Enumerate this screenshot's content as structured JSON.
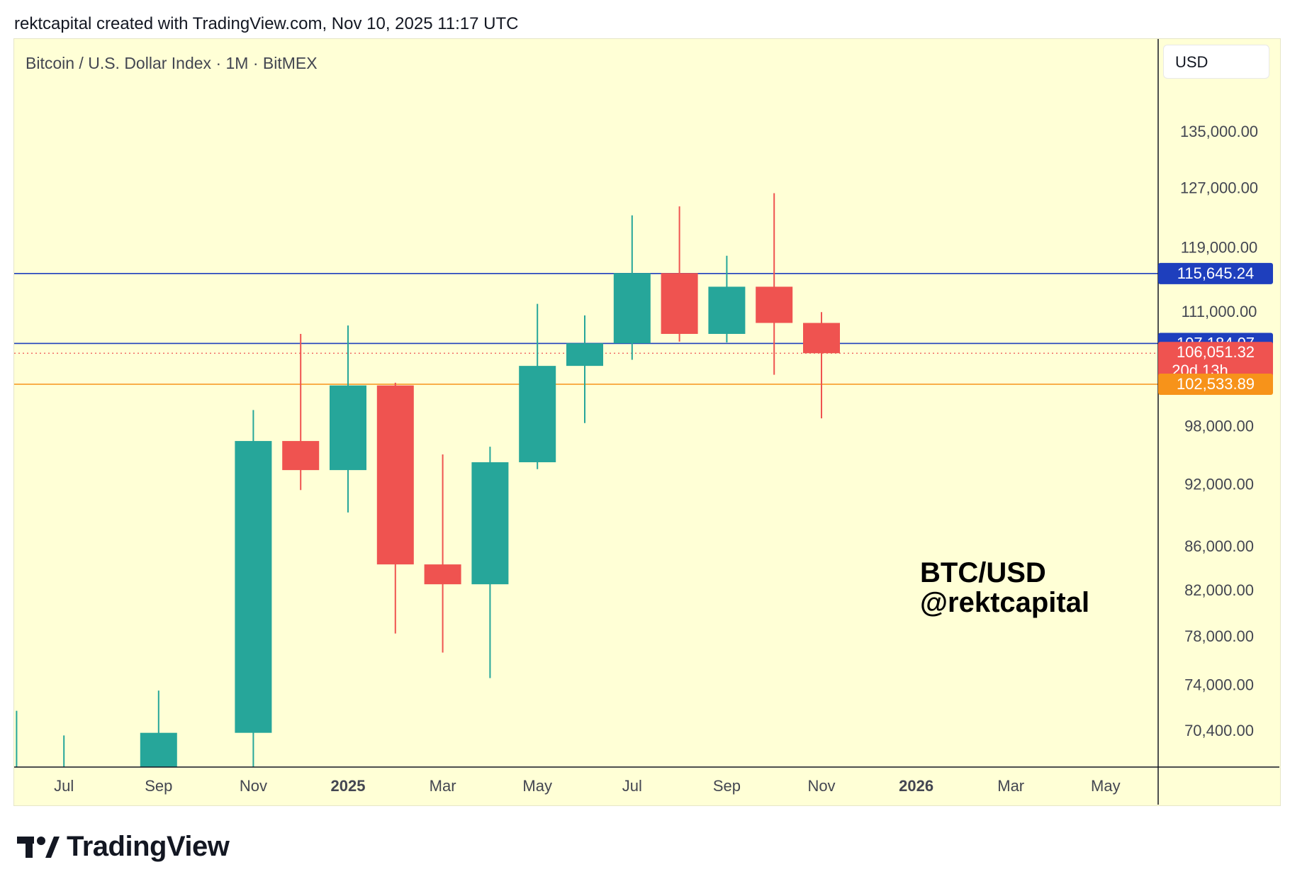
{
  "header": {
    "credit": "rektcapital created with TradingView.com, Nov 10, 2025 11:17 UTC"
  },
  "chart_header": {
    "symbol_line": "Bitcoin / U.S. Dollar Index · 1M · BitMEX",
    "currency": "USD"
  },
  "watermark": {
    "line1": "BTC/USD",
    "line2": "@rektcapital"
  },
  "footer": {
    "brand": "TradingView"
  },
  "colors": {
    "background": "#ffffd6",
    "up": "#26a69a",
    "down": "#ef5350",
    "level_blue": "#1e3fbd",
    "level_orange": "#f7931a",
    "current_red": "#ef5350"
  },
  "chart_data": {
    "type": "candlestick",
    "title": "Bitcoin / U.S. Dollar Index · 1M · BitMEX",
    "interval": "1M",
    "y_scale": "log",
    "ylim": [
      67500,
      140000
    ],
    "y_ticks": [
      "135,000.00",
      "127,000.00",
      "119,000.00",
      "111,000.00",
      "98,000.00",
      "92,000.00",
      "86,000.00",
      "82,000.00",
      "78,000.00",
      "74,000.00",
      "70,400.00"
    ],
    "y_tick_values": [
      135000,
      127000,
      119000,
      111000,
      98000,
      92000,
      86000,
      82000,
      78000,
      74000,
      70400
    ],
    "x_ticks": [
      {
        "label": "Jul",
        "month": "2024-07",
        "bold": false
      },
      {
        "label": "Sep",
        "month": "2024-09",
        "bold": false
      },
      {
        "label": "Nov",
        "month": "2024-11",
        "bold": false
      },
      {
        "label": "2025",
        "month": "2025-01",
        "bold": true
      },
      {
        "label": "Mar",
        "month": "2025-03",
        "bold": false
      },
      {
        "label": "May",
        "month": "2025-05",
        "bold": false
      },
      {
        "label": "Jul",
        "month": "2025-07",
        "bold": false
      },
      {
        "label": "Sep",
        "month": "2025-09",
        "bold": false
      },
      {
        "label": "Nov",
        "month": "2025-11",
        "bold": false
      },
      {
        "label": "2026",
        "month": "2026-01",
        "bold": true
      },
      {
        "label": "Mar",
        "month": "2026-03",
        "bold": false
      },
      {
        "label": "May",
        "month": "2026-05",
        "bold": false
      }
    ],
    "candles": [
      {
        "month": "2024-06",
        "open": 67000,
        "high": 71900,
        "low": 67000,
        "close": 67000
      },
      {
        "month": "2024-07",
        "open": 67000,
        "high": 70000,
        "low": 67000,
        "close": 67000
      },
      {
        "month": "2024-09",
        "open": 67000,
        "high": 73500,
        "low": 67000,
        "close": 70200
      },
      {
        "month": "2024-11",
        "open": 70200,
        "high": 99700,
        "low": 66800,
        "close": 96400
      },
      {
        "month": "2024-12",
        "open": 96400,
        "high": 108300,
        "low": 91400,
        "close": 93400
      },
      {
        "month": "2025-01",
        "open": 93400,
        "high": 109300,
        "low": 89200,
        "close": 102400
      },
      {
        "month": "2025-02",
        "open": 102400,
        "high": 102700,
        "low": 78200,
        "close": 84300
      },
      {
        "month": "2025-03",
        "open": 84300,
        "high": 95000,
        "low": 76600,
        "close": 82500
      },
      {
        "month": "2025-04",
        "open": 82500,
        "high": 95800,
        "low": 74500,
        "close": 94200
      },
      {
        "month": "2025-05",
        "open": 94200,
        "high": 111900,
        "low": 93500,
        "close": 104600
      },
      {
        "month": "2025-06",
        "open": 104600,
        "high": 110500,
        "low": 98300,
        "close": 107200
      },
      {
        "month": "2025-07",
        "open": 107200,
        "high": 123200,
        "low": 105300,
        "close": 115700
      },
      {
        "month": "2025-08",
        "open": 115700,
        "high": 124400,
        "low": 107400,
        "close": 108300
      },
      {
        "month": "2025-09",
        "open": 108300,
        "high": 117900,
        "low": 107300,
        "close": 114000
      },
      {
        "month": "2025-10",
        "open": 114000,
        "high": 126200,
        "low": 103600,
        "close": 109600
      },
      {
        "month": "2025-11",
        "open": 109600,
        "high": 110900,
        "low": 98800,
        "close": 106051.32
      }
    ],
    "levels": [
      {
        "value": 115645.24,
        "label": "115,645.24",
        "style": "solid",
        "color": "#1e3fbd"
      },
      {
        "value": 107184.07,
        "label": "107,184.07",
        "style": "solid",
        "color": "#1e3fbd"
      },
      {
        "value": 106051.32,
        "label": "106,051.32",
        "sublabel": "20d 13h",
        "style": "dotted",
        "color": "#ef5350"
      },
      {
        "value": 102533.89,
        "label": "102,533.89",
        "style": "solid",
        "color": "#f7931a"
      }
    ]
  }
}
